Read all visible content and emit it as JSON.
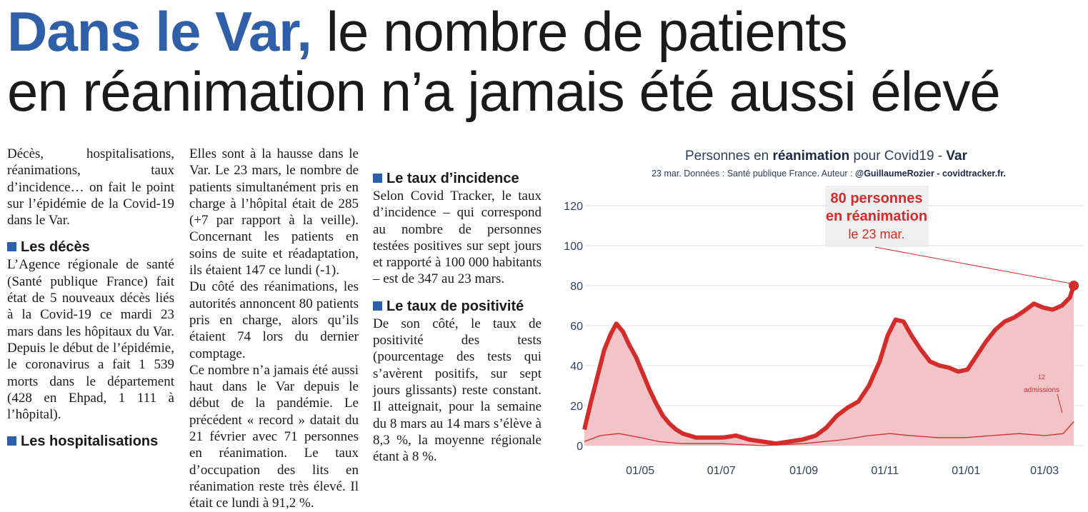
{
  "headline": {
    "accent": "Dans le Var,",
    "rest_line1": " le nombre de patients",
    "line2": "en réanimation n’a jamais été aussi élevé"
  },
  "article": {
    "intro": "Décès, hospitalisations, réanimations, taux d’incidence… on fait le point sur l’épidémie de la Covid-19 dans le Var.",
    "deces_title": "Les décès",
    "deces_text": "L’Agence régionale de santé (Santé publique France) fait état de 5 nouveaux décès liés à la Covid-19 ce mardi 23 mars dans les hôpitaux du Var. Depuis le début de l’épidémie, le coronavirus a fait 1 539 morts dans le département (428 en Ehpad, 1 111 à l’hôpital).",
    "hosp_title": "Les hospitalisations",
    "hosp_text": "Elles sont à la hausse dans le Var. Le 23 mars, le nombre de patients simultanément pris en charge à l’hôpital était de 285 (+7 par rapport à la veille). Concernant les patients en soins de suite et réadaptation, ils étaient 147 ce lundi (-1).",
    "rea_text": "Du côté des réanimations, les autorités annoncent 80 patients pris en charge, alors qu’ils étaient 74 lors du dernier comptage.",
    "record_text": "Ce nombre n’a jamais été aussi haut dans le Var depuis le début de la pandémie. Le précédent « record » datait du 21 février avec 71 personnes en réanimation. Le taux d’occupation des lits en réanimation reste très élevé. Il était ce lundi à 91,2 %.",
    "incidence_title": "Le taux d’incidence",
    "incidence_text": "Selon Covid Tracker, le taux d’incidence – qui correspond au nombre de personnes testées positives sur sept jours et rapporté à 100 000 habitants – est de 347 au 23 mars.",
    "positivite_title": "Le taux de positivité",
    "positivite_text": "De son côté, le taux de positivité des tests (pourcentage des tests qui s’avèrent positifs, sur sept jours glissants) reste constant. Il atteignait, pour la semaine du 8 mars au 14 mars s’élève à 8,3 %, la moyenne régionale étant à 8 %."
  },
  "chart_header": {
    "title_pre": "Personnes en ",
    "title_bold": "réanimation",
    "title_mid": " pour Covid19 - ",
    "title_region": "Var",
    "subtitle_pre": "23 mar. Données : Santé publique France. Auteur : ",
    "subtitle_author": "@GuillaumeRozier - covidtracker.fr."
  },
  "colors": {
    "accent_blue": "#2f5fa8",
    "series_red": "#d42b2b",
    "fill_pink": "#f2c4c7"
  },
  "chart_data": {
    "type": "area",
    "ylim": [
      0,
      130
    ],
    "yticks": [
      0,
      20,
      40,
      60,
      80,
      100,
      120
    ],
    "xticks": [
      {
        "date": "2020-05-01",
        "label": "01/05"
      },
      {
        "date": "2020-07-01",
        "label": "01/07"
      },
      {
        "date": "2020-09-01",
        "label": "01/09"
      },
      {
        "date": "2020-11-01",
        "label": "01/11"
      },
      {
        "date": "2021-01-01",
        "label": "01/01"
      },
      {
        "date": "2021-03-01",
        "label": "01/03"
      }
    ],
    "xlim": [
      "2020-03-20",
      "2021-03-31"
    ],
    "series": [
      {
        "points": [
          [
            "2020-03-20",
            8
          ],
          [
            "2020-03-25",
            22
          ],
          [
            "2020-03-30",
            35
          ],
          [
            "2020-04-04",
            48
          ],
          [
            "2020-04-09",
            56
          ],
          [
            "2020-04-13",
            61
          ],
          [
            "2020-04-18",
            57
          ],
          [
            "2020-04-23",
            50
          ],
          [
            "2020-04-28",
            44
          ],
          [
            "2020-05-03",
            36
          ],
          [
            "2020-05-08",
            28
          ],
          [
            "2020-05-13",
            21
          ],
          [
            "2020-05-18",
            15
          ],
          [
            "2020-05-23",
            11
          ],
          [
            "2020-05-28",
            8
          ],
          [
            "2020-06-02",
            6
          ],
          [
            "2020-06-12",
            4
          ],
          [
            "2020-06-22",
            4
          ],
          [
            "2020-07-02",
            4
          ],
          [
            "2020-07-12",
            5
          ],
          [
            "2020-07-22",
            3
          ],
          [
            "2020-08-01",
            2
          ],
          [
            "2020-08-11",
            1
          ],
          [
            "2020-08-21",
            2
          ],
          [
            "2020-08-31",
            3
          ],
          [
            "2020-09-10",
            5
          ],
          [
            "2020-09-18",
            9
          ],
          [
            "2020-09-26",
            15
          ],
          [
            "2020-10-04",
            19
          ],
          [
            "2020-10-12",
            22
          ],
          [
            "2020-10-20",
            30
          ],
          [
            "2020-10-28",
            42
          ],
          [
            "2020-11-03",
            55
          ],
          [
            "2020-11-09",
            63
          ],
          [
            "2020-11-15",
            62
          ],
          [
            "2020-11-21",
            55
          ],
          [
            "2020-11-28",
            48
          ],
          [
            "2020-12-05",
            42
          ],
          [
            "2020-12-12",
            40
          ],
          [
            "2020-12-19",
            39
          ],
          [
            "2020-12-26",
            37
          ],
          [
            "2021-01-02",
            38
          ],
          [
            "2021-01-09",
            45
          ],
          [
            "2021-01-16",
            52
          ],
          [
            "2021-01-23",
            58
          ],
          [
            "2021-01-30",
            62
          ],
          [
            "2021-02-06",
            64
          ],
          [
            "2021-02-13",
            67
          ],
          [
            "2021-02-21",
            71
          ],
          [
            "2021-02-28",
            69
          ],
          [
            "2021-03-07",
            68
          ],
          [
            "2021-03-14",
            70
          ],
          [
            "2021-03-20",
            74
          ],
          [
            "2021-03-23",
            80
          ]
        ]
      },
      {
        "points": [
          [
            "2020-03-20",
            2
          ],
          [
            "2020-04-01",
            5
          ],
          [
            "2020-04-15",
            6
          ],
          [
            "2020-05-01",
            4
          ],
          [
            "2020-05-15",
            2
          ],
          [
            "2020-06-01",
            1
          ],
          [
            "2020-07-01",
            1
          ],
          [
            "2020-08-01",
            0
          ],
          [
            "2020-09-01",
            1
          ],
          [
            "2020-10-01",
            3
          ],
          [
            "2020-10-20",
            5
          ],
          [
            "2020-11-05",
            6
          ],
          [
            "2020-11-20",
            5
          ],
          [
            "2020-12-10",
            4
          ],
          [
            "2021-01-01",
            4
          ],
          [
            "2021-01-20",
            5
          ],
          [
            "2021-02-10",
            6
          ],
          [
            "2021-03-01",
            5
          ],
          [
            "2021-03-15",
            6
          ],
          [
            "2021-03-23",
            12
          ]
        ]
      }
    ],
    "annotation": {
      "line1": "80 personnes",
      "line2": "en réanimation",
      "line3": "le 23 mar.",
      "date": "2021-03-23",
      "value": 80
    },
    "admissions_label": {
      "value": "12",
      "text": "admissions"
    }
  }
}
